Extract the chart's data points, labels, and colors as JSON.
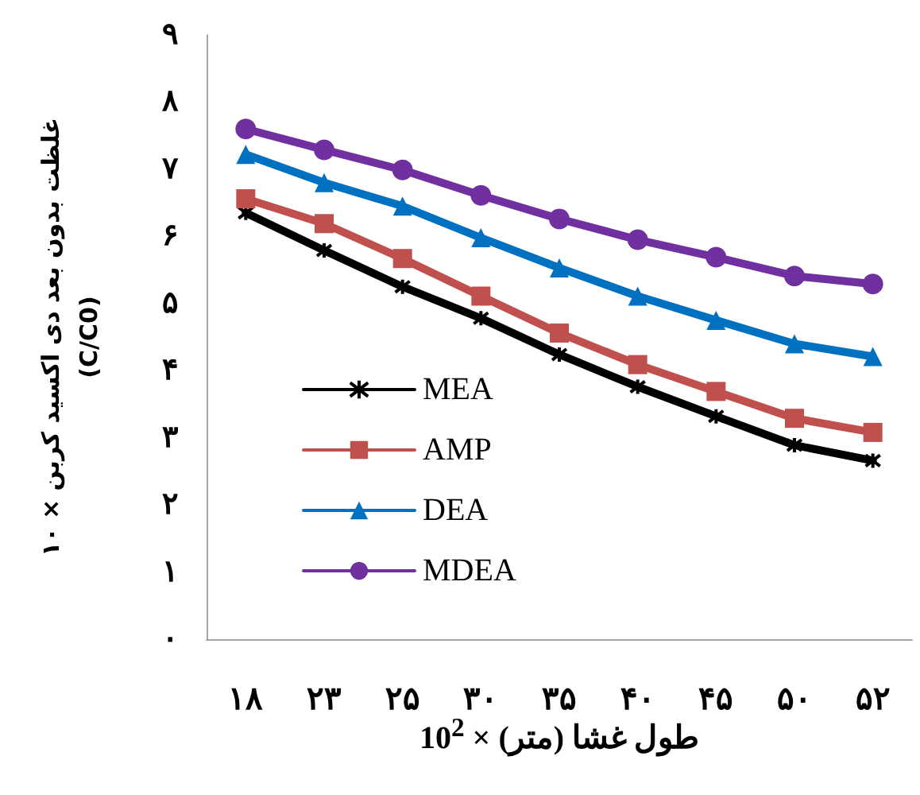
{
  "chart_data": {
    "type": "line",
    "xlabel": "طول غشا (متر) × 10$^{2}$",
    "ylabel": "غلظت بدون بعد دی اکسید کربن × ۱۰\n(C/C0)",
    "categories": [
      "۱۸",
      "۲۳",
      "۲۵",
      "۳۰",
      "۳۵",
      "۴۰",
      "۴۵",
      "۵۰",
      "۵۲"
    ],
    "ylim": [
      0,
      9
    ],
    "yticks": [
      {
        "value": 0,
        "label": "۰"
      },
      {
        "value": 1,
        "label": "۱"
      },
      {
        "value": 2,
        "label": "۲"
      },
      {
        "value": 3,
        "label": "۳"
      },
      {
        "value": 4,
        "label": "۴"
      },
      {
        "value": 5,
        "label": "۵"
      },
      {
        "value": 6,
        "label": "۶"
      },
      {
        "value": 7,
        "label": "۷"
      },
      {
        "value": 8,
        "label": "۸"
      },
      {
        "value": 9,
        "label": "۹"
      }
    ],
    "grid": false,
    "legend": "bottom left",
    "line_style": "solid",
    "series": [
      {
        "name": "MEA",
        "color": "#000000",
        "marker": "cross",
        "values": [
          6.35,
          5.79,
          5.25,
          4.78,
          4.24,
          3.76,
          3.32,
          2.89,
          2.66
        ]
      },
      {
        "name": "AMP",
        "color": "#c0504d",
        "marker": "square",
        "values": [
          6.56,
          6.19,
          5.67,
          5.11,
          4.56,
          4.09,
          3.69,
          3.29,
          3.08
        ]
      },
      {
        "name": "DEA",
        "color": "#0070c0",
        "marker": "triangle",
        "values": [
          7.22,
          6.8,
          6.45,
          5.98,
          5.53,
          5.11,
          4.75,
          4.4,
          4.21
        ]
      },
      {
        "name": "MDEA",
        "color": "#7030a0",
        "marker": "circle",
        "values": [
          7.6,
          7.29,
          6.99,
          6.61,
          6.26,
          5.95,
          5.69,
          5.41,
          5.29
        ]
      }
    ]
  }
}
